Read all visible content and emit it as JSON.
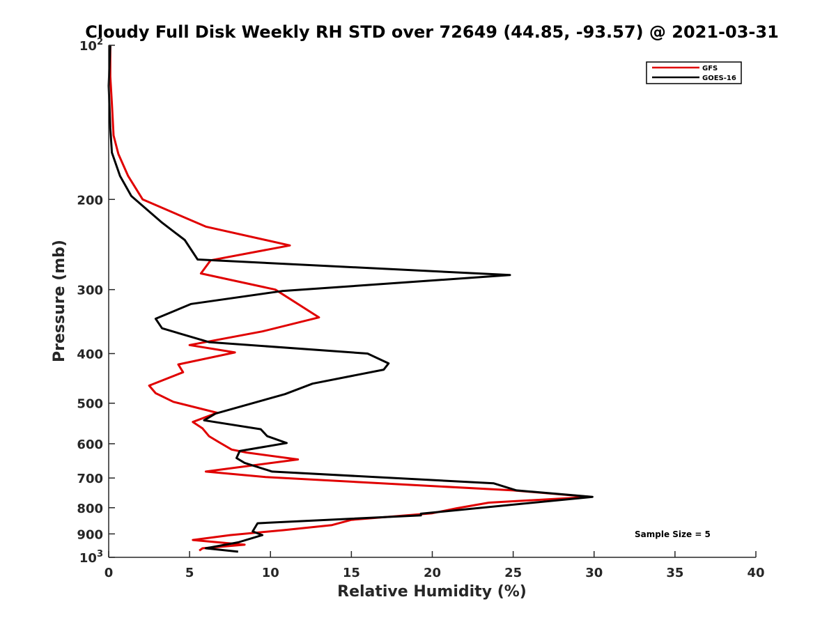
{
  "chart_data": {
    "type": "line",
    "title": "Cloudy Full Disk Weekly RH STD over 72649 (44.85, -93.57) @ 2021-03-31",
    "xlabel": "Relative Humidity (%)",
    "ylabel": "Pressure (mb)",
    "xlim": [
      0,
      40
    ],
    "ylim": [
      100,
      1000
    ],
    "y_scale": "log",
    "y_reversed": true,
    "grid": false,
    "legend_position": "top-right",
    "x_ticks": [
      0,
      5,
      10,
      15,
      20,
      25,
      30,
      35,
      40
    ],
    "y_ticks": [
      {
        "value": 100,
        "label": "10",
        "sup": "2"
      },
      {
        "value": 200,
        "label": "200",
        "sup": ""
      },
      {
        "value": 300,
        "label": "300",
        "sup": ""
      },
      {
        "value": 400,
        "label": "400",
        "sup": ""
      },
      {
        "value": 500,
        "label": "500",
        "sup": ""
      },
      {
        "value": 600,
        "label": "600",
        "sup": ""
      },
      {
        "value": 700,
        "label": "700",
        "sup": ""
      },
      {
        "value": 800,
        "label": "800",
        "sup": ""
      },
      {
        "value": 900,
        "label": "900",
        "sup": ""
      },
      {
        "value": 1000,
        "label": "10",
        "sup": "3"
      }
    ],
    "series": [
      {
        "name": "GFS",
        "color": "#e00000",
        "points": [
          [
            0.1,
            100
          ],
          [
            0.1,
            115
          ],
          [
            0.2,
            130
          ],
          [
            0.3,
            150
          ],
          [
            0.6,
            163
          ],
          [
            1.2,
            180
          ],
          [
            2.1,
            200
          ],
          [
            6.0,
            226
          ],
          [
            11.2,
            246
          ],
          [
            6.3,
            263
          ],
          [
            5.7,
            279
          ],
          [
            10.3,
            300
          ],
          [
            13.0,
            340
          ],
          [
            9.5,
            362
          ],
          [
            5.0,
            385
          ],
          [
            7.8,
            398
          ],
          [
            4.3,
            420
          ],
          [
            4.6,
            435
          ],
          [
            2.5,
            462
          ],
          [
            2.9,
            478
          ],
          [
            4.0,
            497
          ],
          [
            6.7,
            522
          ],
          [
            5.2,
            544
          ],
          [
            5.8,
            560
          ],
          [
            6.2,
            580
          ],
          [
            6.9,
            598
          ],
          [
            7.6,
            616
          ],
          [
            8.5,
            624
          ],
          [
            11.7,
            644
          ],
          [
            6.0,
            680
          ],
          [
            9.7,
            697
          ],
          [
            25.0,
            740
          ],
          [
            29.8,
            762
          ],
          [
            23.5,
            782
          ],
          [
            21.5,
            802
          ],
          [
            20.0,
            820
          ],
          [
            15.0,
            845
          ],
          [
            13.8,
            865
          ],
          [
            10.8,
            885
          ],
          [
            7.5,
            905
          ],
          [
            5.2,
            925
          ],
          [
            8.4,
            945
          ],
          [
            5.8,
            960
          ],
          [
            5.6,
            970
          ]
        ]
      },
      {
        "name": "GOES-16",
        "color": "#000000",
        "points": [
          [
            0.1,
            100
          ],
          [
            0.0,
            120
          ],
          [
            0.1,
            145
          ],
          [
            0.2,
            162
          ],
          [
            0.7,
            180
          ],
          [
            1.4,
            197
          ],
          [
            3.3,
            222
          ],
          [
            4.7,
            240
          ],
          [
            5.5,
            262
          ],
          [
            24.8,
            281
          ],
          [
            10.7,
            302
          ],
          [
            5.1,
            320
          ],
          [
            2.9,
            342
          ],
          [
            3.3,
            357
          ],
          [
            6.2,
            380
          ],
          [
            16.0,
            400
          ],
          [
            17.3,
            418
          ],
          [
            17.0,
            430
          ],
          [
            12.6,
            458
          ],
          [
            10.9,
            480
          ],
          [
            6.6,
            524
          ],
          [
            5.9,
            540
          ],
          [
            9.4,
            562
          ],
          [
            9.8,
            580
          ],
          [
            11.0,
            598
          ],
          [
            8.1,
            620
          ],
          [
            7.9,
            640
          ],
          [
            8.4,
            654
          ],
          [
            10.1,
            680
          ],
          [
            23.8,
            717
          ],
          [
            25.2,
            740
          ],
          [
            29.9,
            762
          ],
          [
            19.3,
            822
          ],
          [
            19.3,
            828
          ],
          [
            9.2,
            858
          ],
          [
            8.9,
            890
          ],
          [
            9.5,
            905
          ],
          [
            8.0,
            935
          ],
          [
            6.0,
            960
          ],
          [
            8.0,
            975
          ]
        ]
      }
    ],
    "annotation": "Sample Size = 5"
  }
}
